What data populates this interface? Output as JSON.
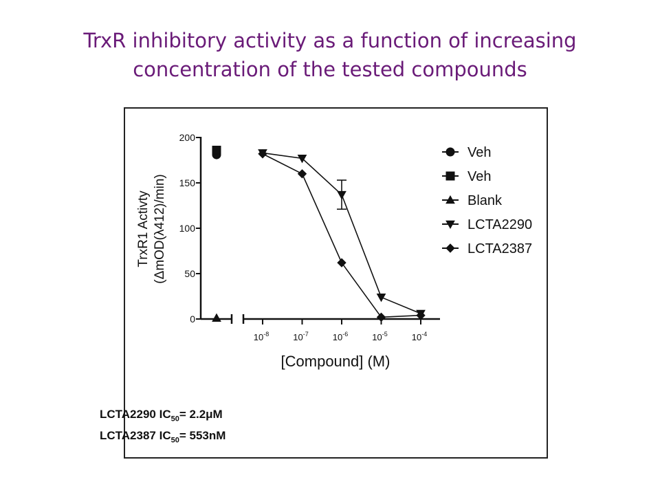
{
  "slide": {
    "title_line1": "TrxR inhibitory activity as a function of increasing",
    "title_line2": "concentration of the tested compounds"
  },
  "ic50": [
    {
      "prefix": "LCTA2290 IC",
      "sub": "50",
      "suffix": "= 2.2μM"
    },
    {
      "prefix": "LCTA2387 IC",
      "sub": "50",
      "suffix": "= 553nM"
    }
  ],
  "chart_data": {
    "type": "line",
    "xlabel": "[Compound] (M)",
    "ylabel_line1": "TrxR1 Activty",
    "ylabel_line2": "(ΔmOD(λ412)/min)",
    "x_scale": "log",
    "x_ticks": [
      1e-08,
      1e-07,
      1e-06,
      1e-05,
      0.0001
    ],
    "x_tick_bases": [
      "10",
      "10",
      "10",
      "10",
      "10"
    ],
    "x_tick_exps": [
      "-8",
      "-7",
      "-6",
      "-5",
      "-4"
    ],
    "y_ticks": [
      0,
      50,
      100,
      150,
      200
    ],
    "y_tick_labels": [
      "0",
      "50",
      "100",
      "150",
      "200"
    ],
    "ylim": [
      0,
      200
    ],
    "grid": false,
    "legend_position": "right",
    "series": [
      {
        "name": "Veh",
        "marker": "circle",
        "points": [
          {
            "x": "control",
            "y": 181
          }
        ]
      },
      {
        "name": "Veh",
        "marker": "square",
        "points": [
          {
            "x": "control",
            "y": 186
          }
        ]
      },
      {
        "name": "Blank",
        "marker": "triangle-up",
        "points": [
          {
            "x": "control",
            "y": 1
          }
        ]
      },
      {
        "name": "LCTA2290",
        "marker": "triangle-down",
        "x": [
          1e-08,
          1e-07,
          1e-06,
          1e-05,
          0.0001
        ],
        "y": [
          183,
          177,
          137,
          24,
          6
        ],
        "error": [
          0,
          0,
          16,
          0,
          0
        ]
      },
      {
        "name": "LCTA2387",
        "marker": "diamond",
        "x": [
          1e-08,
          1e-07,
          1e-06,
          1e-05,
          0.0001
        ],
        "y": [
          182,
          160,
          62,
          2,
          4
        ],
        "error": [
          0,
          0,
          0,
          0,
          0
        ]
      }
    ]
  }
}
